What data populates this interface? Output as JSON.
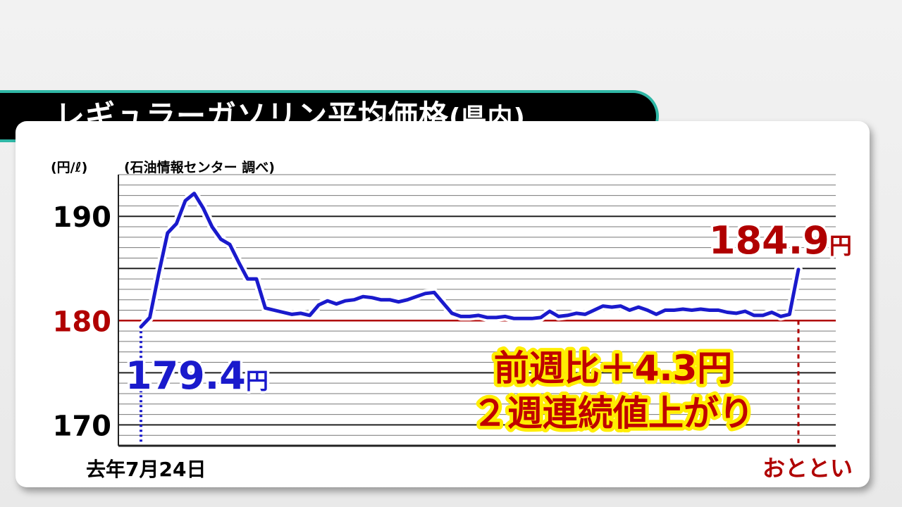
{
  "title": {
    "main": "レギュラーガソリン平均価格",
    "paren": "(県内)"
  },
  "chart_data": {
    "type": "line",
    "unit_label": "(円/ℓ)",
    "source_note": "(石油情報センター 調べ)",
    "ylim": [
      168,
      194
    ],
    "yticks": [
      {
        "value": 190,
        "label": "190",
        "color": "#000000"
      },
      {
        "value": 180,
        "label": "180",
        "color": "#b00000"
      },
      {
        "value": 170,
        "label": "170",
        "color": "#000000"
      }
    ],
    "grid": true,
    "grid_step": 1,
    "reference_line": 180,
    "x_start_label": "去年7月24日",
    "x_end_label": "おととい",
    "series": [
      {
        "color": "#1a1acc",
        "values": [
          179.4,
          180.3,
          184.5,
          188.4,
          189.3,
          191.5,
          192.2,
          190.8,
          189.0,
          187.8,
          187.3,
          185.6,
          184.0,
          184.0,
          181.2,
          181.0,
          180.8,
          180.6,
          180.7,
          180.5,
          181.5,
          181.9,
          181.6,
          181.9,
          182.0,
          182.3,
          182.2,
          182.0,
          182.0,
          181.8,
          182.0,
          182.3,
          182.6,
          182.7,
          181.7,
          180.7,
          180.4,
          180.4,
          180.5,
          180.3,
          180.3,
          180.4,
          180.2,
          180.2,
          180.2,
          180.3,
          180.9,
          180.4,
          180.5,
          180.7,
          180.6,
          181.0,
          181.4,
          181.3,
          181.4,
          181.0,
          181.3,
          181.0,
          180.6,
          181.0,
          181.0,
          181.1,
          181.0,
          181.1,
          181.0,
          181.0,
          180.8,
          180.7,
          180.9,
          180.5,
          180.5,
          180.8,
          180.4,
          180.6,
          184.9
        ]
      }
    ],
    "start_value": 179.4,
    "end_value": 184.9,
    "start_label": "179.4",
    "end_label": "184.9",
    "value_unit": "円",
    "annotation": [
      "前週比＋4.3円",
      "２週連続値上がり"
    ]
  }
}
